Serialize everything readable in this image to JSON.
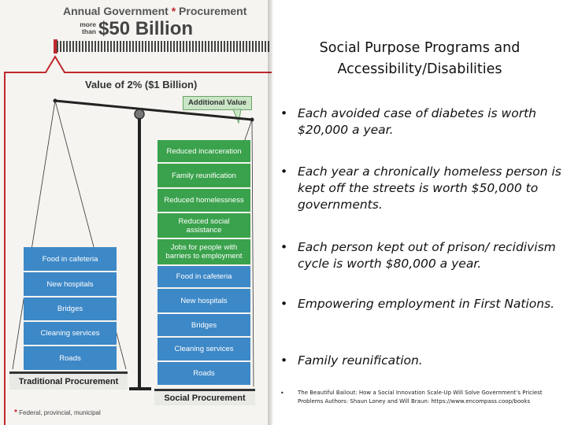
{
  "graphic": {
    "header_title": "Annual Government",
    "header_asterisk": "*",
    "header_title2": "Procurement",
    "more_than": "more than",
    "amount": "$50 Billion",
    "value_label": "Value of 2% ($1 Billion)",
    "additional_value": "Additional Value",
    "traditional_blocks": [
      "Food in cafeteria",
      "New hospitals",
      "Bridges",
      "Cleaning services",
      "Roads"
    ],
    "social_extra_blocks": [
      "Reduced incarceration",
      "Family reunification",
      "Reduced homelessness",
      "Reduced social assistance",
      "Jobs for people with barriers to employment"
    ],
    "social_blocks": [
      "Food in cafeteria",
      "New hospitals",
      "Bridges",
      "Cleaning services",
      "Roads"
    ],
    "traditional_base": "Traditional Procurement",
    "social_base": "Social Procurement",
    "footnote_asterisk": "*",
    "footnote": "Federal, provincial, municipal",
    "colors": {
      "blue": "#3d88c7",
      "green": "#3aa24c",
      "red": "#c0282d"
    }
  },
  "slide": {
    "title_line1": "Social Purpose Programs and",
    "title_line2": "Accessibility/Disabilities",
    "bullet_char": "•",
    "bullets": [
      "Each avoided case of diabetes is worth $20,000 a year.",
      "Each year a chronically homeless person is kept off the streets is worth $50,000 to governments.",
      "Each person kept out of prison/ recidivism cycle is worth $80,000 a year.",
      "Empowering employment in First Nations.",
      "Family reunification."
    ],
    "citation": "The Beautiful Bailout: How a Social Innovation Scale-Up Will Solve Government’s Priciest Problems Authors: Shaun Loney and Will Braun: https://www.encompass.coop/books"
  }
}
